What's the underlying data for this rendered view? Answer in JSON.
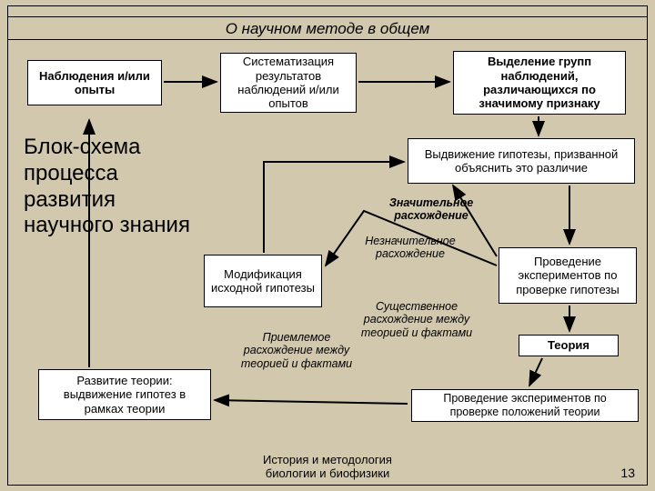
{
  "type": "flowchart",
  "title": "О научном методе в общем",
  "side_title": "Блок-схема процесса развития научного знания",
  "footer": "История и методология\nбиологии и биофизики",
  "page_number": "13",
  "colors": {
    "bg": "#d2c8ae",
    "box_bg": "#ffffff",
    "border": "#000000"
  },
  "title_fontsize": 17,
  "side_fontsize": 24,
  "box_fontsize": 13,
  "label_fontsize": 12.5,
  "nodes": {
    "n1": {
      "text": "Наблюдения и/или опыты"
    },
    "n2": {
      "text": "Систематизация результатов наблюдений и/или опытов"
    },
    "n3": {
      "text": "Выделение групп наблюдений, различающихся по значимому признаку"
    },
    "n4": {
      "text": "Выдвижение гипотезы, призванной объяснить это различие"
    },
    "n5": {
      "text": "Проведение экспериментов по проверке гипотезы"
    },
    "n6": {
      "text": "Модификация исходной гипотезы"
    },
    "n7": {
      "text": "Теория"
    },
    "n8": {
      "text": "Проведение экспериментов по проверке положений теории"
    },
    "n9": {
      "text": "Развитие теории: выдвижение гипотез в рамках теории"
    }
  },
  "labels": {
    "l1": {
      "text": "Значительное расхождение"
    },
    "l2": {
      "text": "Незначительное расхождение"
    },
    "l3": {
      "text": "Существенное расхождение между теорией и фактами"
    },
    "l4": {
      "text": "Приемлемое расхождение между теорией и фактами"
    }
  },
  "arrows": [
    {
      "from": "n1",
      "to": "n2"
    },
    {
      "from": "n2",
      "to": "n3"
    },
    {
      "from": "n3",
      "to": "n4"
    },
    {
      "from": "n4",
      "to": "n5"
    },
    {
      "from": "n5",
      "to": "n6",
      "via": "l1"
    },
    {
      "from": "n5",
      "to": "n4",
      "via": "l2"
    },
    {
      "from": "n6",
      "to": "n4"
    },
    {
      "from": "n5",
      "to": "n7",
      "via": "l4"
    },
    {
      "from": "n7",
      "to": "n8"
    },
    {
      "from": "n8",
      "to": "n9",
      "via": "l3"
    },
    {
      "from": "n9",
      "to": "n1"
    }
  ]
}
